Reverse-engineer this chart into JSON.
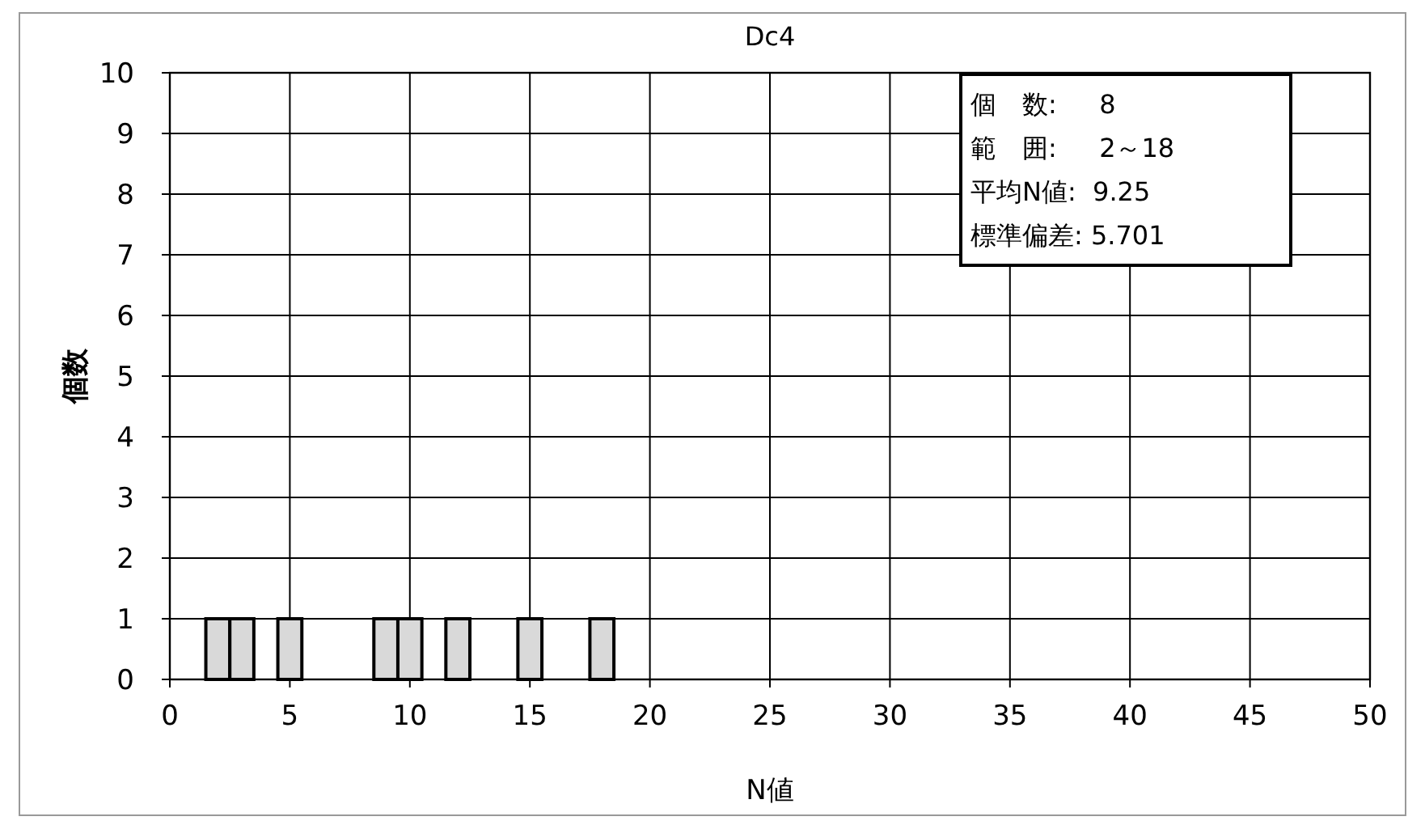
{
  "chart_data": {
    "type": "histogram",
    "title": "Dc4",
    "xlabel": "N値",
    "ylabel": "個数",
    "bins": [
      1.5,
      2.5,
      3.5,
      4.5,
      5.5,
      6.5,
      7.5,
      8.5,
      9.5,
      10.5,
      11.5,
      12.5,
      13.5,
      14.5,
      15.5,
      16.5,
      17.5,
      18.5
    ],
    "values": [
      1,
      1,
      0,
      1,
      0,
      0,
      0,
      1,
      1,
      0,
      1,
      0,
      0,
      1,
      0,
      0,
      1
    ],
    "color": "#d9d9d9",
    "xlim": [
      0,
      50
    ],
    "xticks": [
      0,
      5,
      10,
      15,
      20,
      25,
      30,
      35,
      40,
      45,
      50
    ],
    "ylim": [
      0,
      10
    ],
    "yticks": [
      0,
      1,
      2,
      3,
      4,
      5,
      6,
      7,
      8,
      9,
      10
    ],
    "grid": true,
    "annotations": [
      "個　数:　  8",
      "範　囲:　  2～18",
      "平均N値:  9.25",
      "標準偏差: 5.701"
    ]
  }
}
